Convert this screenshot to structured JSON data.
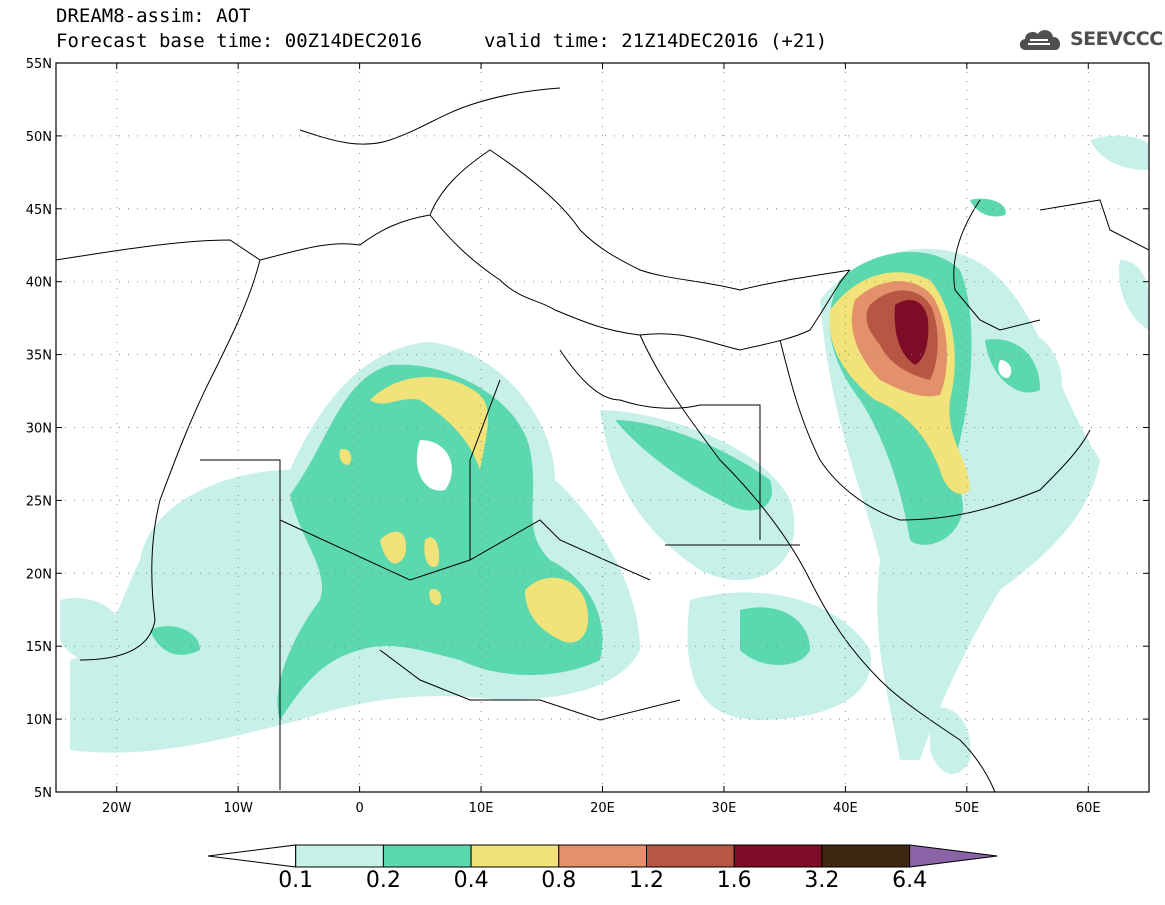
{
  "header": {
    "title": "DREAM8-assim: AOT",
    "base_time": "Forecast base time: 00Z14DEC2016",
    "valid_time": "valid time: 21Z14DEC2016 (+21)",
    "logo_text": "SEEVCCC"
  },
  "map": {
    "lon_range": [
      -25,
      65
    ],
    "lat_range": [
      5,
      55
    ],
    "lat_labels": [
      "55N",
      "50N",
      "45N",
      "40N",
      "35N",
      "30N",
      "25N",
      "20N",
      "15N",
      "10N",
      "5N"
    ],
    "lon_labels": [
      "20W",
      "10W",
      "0",
      "10E",
      "20E",
      "30E",
      "40E",
      "50E",
      "60E"
    ],
    "grid": true
  },
  "colorbar": {
    "labels": [
      "0.1",
      "0.2",
      "0.4",
      "0.8",
      "1.2",
      "1.6",
      "3.2",
      "6.4"
    ],
    "colors": [
      "#ffffff",
      "#c6f0e8",
      "#5bd8ad",
      "#f2e27a",
      "#e3916a",
      "#b75643",
      "#7d0c26",
      "#3d2712",
      "#8a63a6"
    ],
    "extend": "both"
  }
}
